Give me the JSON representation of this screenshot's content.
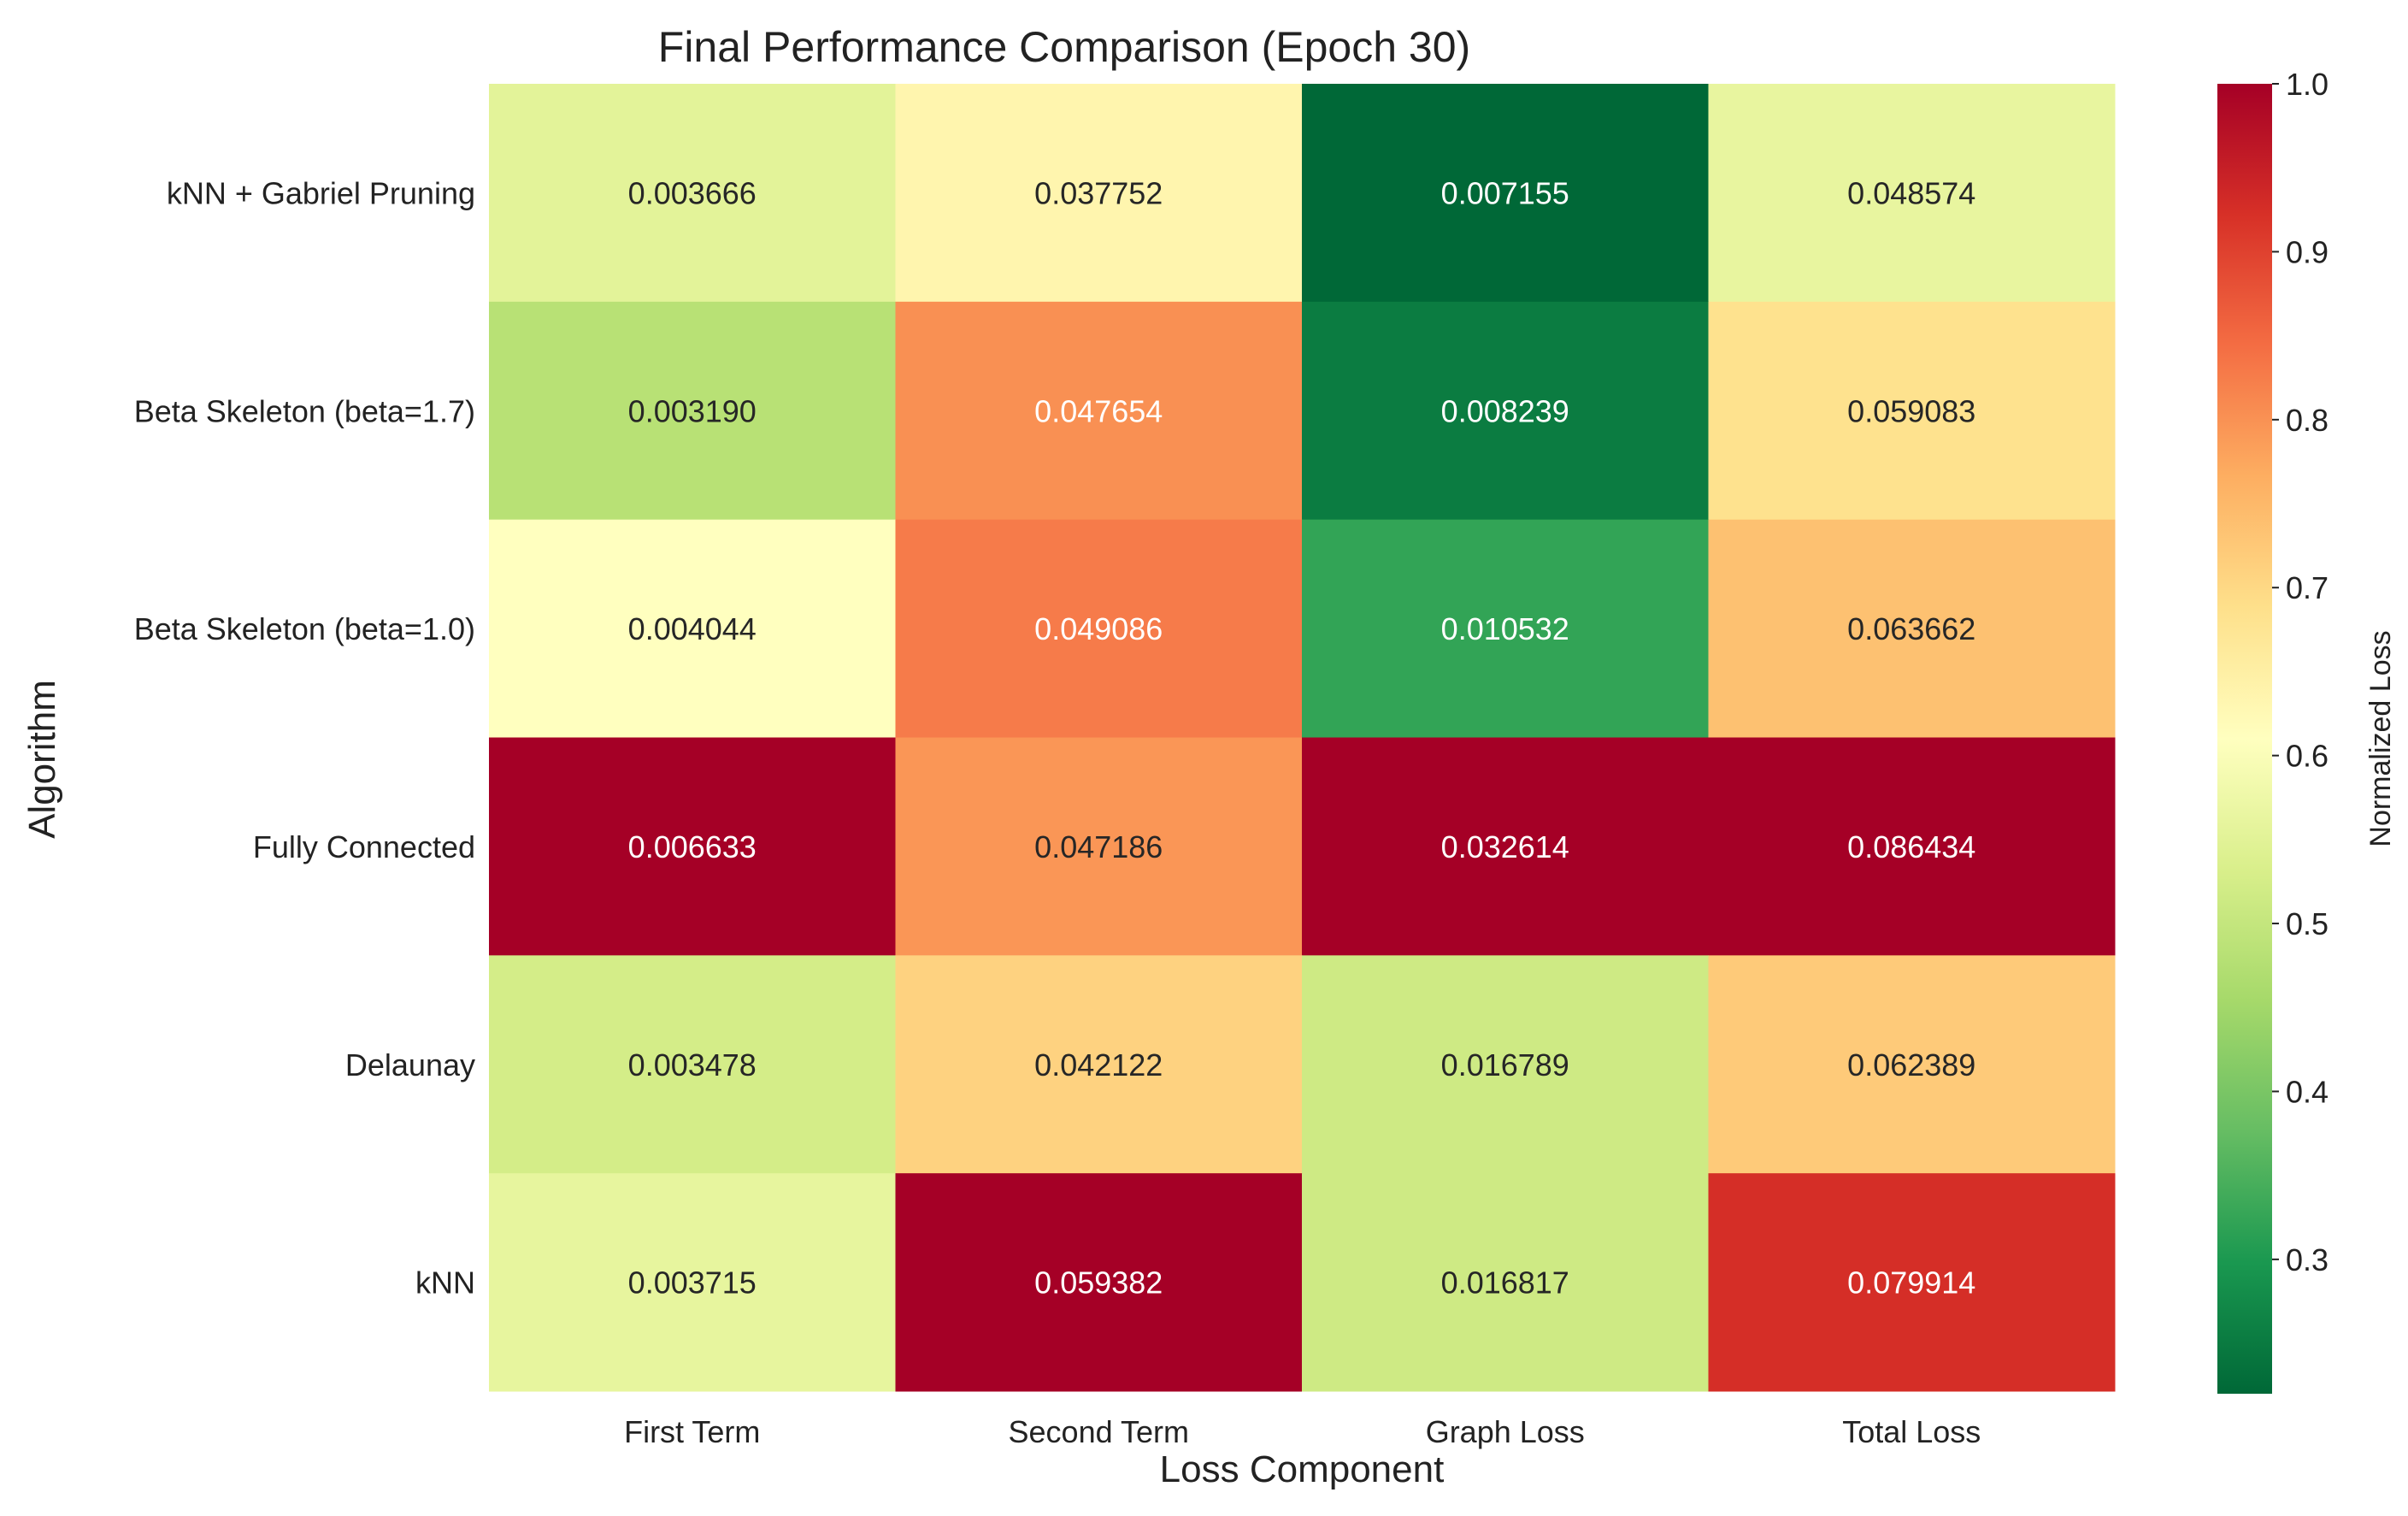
{
  "chart_data": {
    "type": "heatmap",
    "title": "Final Performance Comparison (Epoch 30)",
    "xlabel": "Loss Component",
    "ylabel": "Algorithm",
    "x_categories": [
      "First Term",
      "Second Term",
      "Graph Loss",
      "Total Loss"
    ],
    "y_categories": [
      "kNN + Gabriel Pruning",
      "Beta Skeleton (beta=1.7)",
      "Beta Skeleton (beta=1.0)",
      "Fully Connected",
      "Delaunay",
      "kNN"
    ],
    "values": [
      [
        "0.003666",
        "0.037752",
        "0.007155",
        "0.048574"
      ],
      [
        "0.003190",
        "0.047654",
        "0.008239",
        "0.059083"
      ],
      [
        "0.004044",
        "0.049086",
        "0.010532",
        "0.063662"
      ],
      [
        "0.006633",
        "0.047186",
        "0.032614",
        "0.086434"
      ],
      [
        "0.003478",
        "0.042122",
        "0.016789",
        "0.062389"
      ],
      [
        "0.003715",
        "0.059382",
        "0.016817",
        "0.079914"
      ]
    ],
    "colorbar": {
      "label": "Normalized Loss",
      "colormap": "RdYlGn_r",
      "range": [
        0.22,
        1.0
      ],
      "ticks": [
        "0.3",
        "0.4",
        "0.5",
        "0.6",
        "0.7",
        "0.8",
        "0.9",
        "1.0"
      ]
    },
    "grid": false
  }
}
